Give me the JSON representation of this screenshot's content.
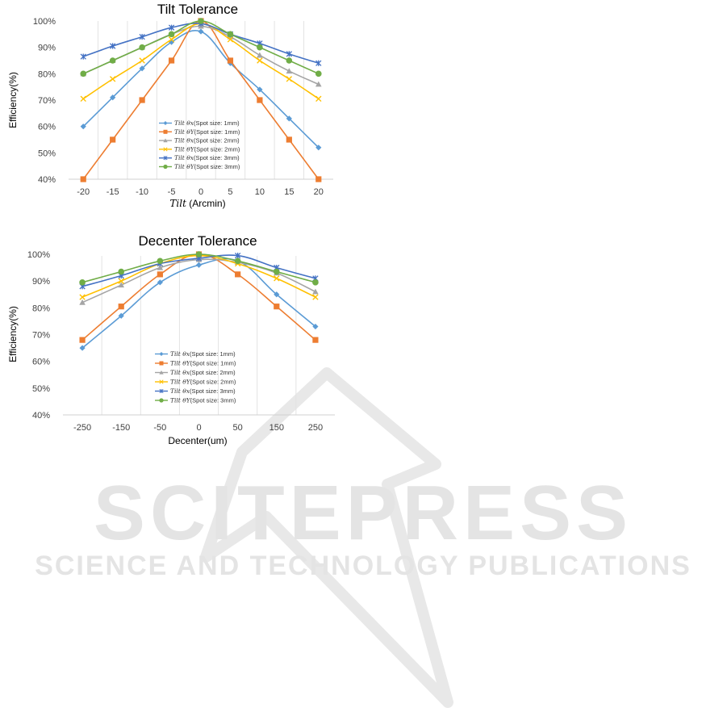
{
  "watermark": {
    "main": "SCITEPRESS",
    "sub": "SCIENCE AND TECHNOLOGY PUBLICATIONS",
    "color": "#e4e4e4"
  },
  "chart_data": [
    {
      "type": "line",
      "title": "Tilt Tolerance",
      "xlabel_math": "Tilt",
      "xlabel": " (Arcmin)",
      "ylabel": "Efficiency(%)",
      "x": [
        -20,
        -15,
        -10,
        -5,
        0,
        5,
        10,
        15,
        20
      ],
      "x_tick_labels": [
        "-20",
        "-15",
        "-10",
        "-5",
        "0",
        "5",
        "10",
        "15",
        "20"
      ],
      "y_ticks": [
        "40%",
        "50%",
        "60%",
        "70%",
        "80%",
        "90%",
        "100%"
      ],
      "ylim": [
        40,
        100
      ],
      "grid": "vertical",
      "legend_position": "center-bottom",
      "series": [
        {
          "name_math": "Tilt θx",
          "name": "(Spot size: 1mm)",
          "color": "#5b9bd5",
          "marker": "diamond",
          "values": [
            60,
            71,
            82,
            92,
            96,
            84,
            74,
            63,
            52
          ]
        },
        {
          "name_math": "Tilt θY",
          "name": "(Spot size: 1mm)",
          "color": "#ed7d31",
          "marker": "square",
          "values": [
            40,
            55,
            70,
            85,
            100,
            85,
            70,
            55,
            40
          ]
        },
        {
          "name_math": "Tilt θx",
          "name": "(Spot size: 2mm)",
          "color": "#a5a5a5",
          "marker": "triangle",
          "values": [
            80,
            85,
            90,
            95,
            98,
            94,
            87,
            81,
            76
          ]
        },
        {
          "name_math": "Tilt θY",
          "name": "(Spot size: 2mm)",
          "color": "#ffc000",
          "marker": "x",
          "values": [
            70.5,
            78,
            85,
            93,
            99,
            93,
            85,
            78,
            70.5
          ]
        },
        {
          "name_math": "Tilt θx",
          "name": "(Spot size: 3mm)",
          "color": "#4472c4",
          "marker": "star",
          "values": [
            86.5,
            90.5,
            94,
            97.5,
            99,
            95,
            91.5,
            87.5,
            84
          ]
        },
        {
          "name_math": "Tilt θY",
          "name": "(Spot size: 3mm)",
          "color": "#70ad47",
          "marker": "circle",
          "values": [
            80,
            85,
            90,
            95,
            100,
            95,
            90,
            85,
            80
          ]
        }
      ]
    },
    {
      "type": "line",
      "title": "Decenter Tolerance",
      "xlabel": "Decenter(um)",
      "ylabel": "Efficiency(%)",
      "x": [
        -250,
        -150,
        -50,
        0,
        50,
        150,
        250
      ],
      "x_tick_labels": [
        "-250",
        "-150",
        "-50",
        "0",
        "50",
        "150",
        "250"
      ],
      "y_ticks": [
        "40%",
        "50%",
        "60%",
        "70%",
        "80%",
        "90%",
        "100%"
      ],
      "ylim": [
        40,
        100
      ],
      "grid": "vertical",
      "legend_position": "center-bottom",
      "series": [
        {
          "name_math": "Tilt θx",
          "name": "(Spot size: 1mm)",
          "color": "#5b9bd5",
          "marker": "diamond",
          "values": [
            65,
            77,
            89.5,
            96,
            97.5,
            85,
            73
          ]
        },
        {
          "name_math": "Tilt θY",
          "name": "(Spot size: 1mm)",
          "color": "#ed7d31",
          "marker": "square",
          "values": [
            68,
            80.5,
            92.5,
            100,
            92.5,
            80.5,
            68
          ]
        },
        {
          "name_math": "Tilt θx",
          "name": "(Spot size: 2mm)",
          "color": "#a5a5a5",
          "marker": "triangle",
          "values": [
            82,
            88.5,
            95,
            98,
            97,
            93,
            86
          ]
        },
        {
          "name_math": "Tilt θY",
          "name": "(Spot size: 2mm)",
          "color": "#ffc000",
          "marker": "x",
          "values": [
            84,
            90,
            96.5,
            99.5,
            96.5,
            91,
            84
          ]
        },
        {
          "name_math": "Tilt θx",
          "name": "(Spot size: 3mm)",
          "color": "#4472c4",
          "marker": "star",
          "values": [
            88,
            92,
            96.5,
            98.5,
            99.5,
            95,
            91
          ]
        },
        {
          "name_math": "Tilt θY",
          "name": "(Spot size: 3mm)",
          "color": "#70ad47",
          "marker": "circle",
          "values": [
            89.5,
            93.5,
            97.5,
            100,
            97.5,
            93.5,
            89.5
          ]
        }
      ]
    }
  ]
}
